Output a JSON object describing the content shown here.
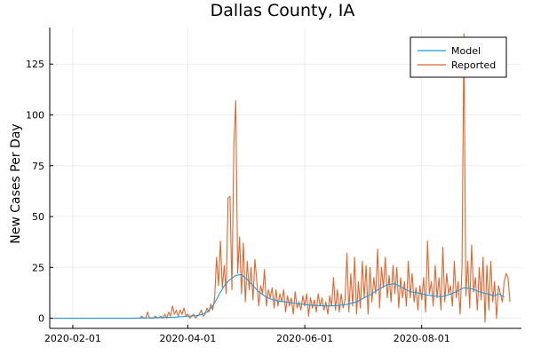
{
  "chart_data": {
    "type": "line",
    "title": "Dallas County, IA",
    "xlabel": "",
    "ylabel": "New Cases Per Day",
    "x_axis_type": "date",
    "xlim": [
      "2020-01-20",
      "2020-09-22"
    ],
    "ylim": [
      -5,
      143
    ],
    "x_ticks": [
      "2020-02-01",
      "2020-04-01",
      "2020-06-01",
      "2020-08-01"
    ],
    "y_ticks": [
      0,
      25,
      50,
      75,
      100,
      125
    ],
    "grid": true,
    "legend_position": "top-right",
    "series": [
      {
        "name": "Model",
        "color": "#1a9ae0",
        "points": [
          [
            "2020-01-22",
            0
          ],
          [
            "2020-03-01",
            0
          ],
          [
            "2020-03-15",
            0.2
          ],
          [
            "2020-03-25",
            0.5
          ],
          [
            "2020-04-01",
            1
          ],
          [
            "2020-04-05",
            1.2
          ],
          [
            "2020-04-08",
            1.8
          ],
          [
            "2020-04-11",
            3
          ],
          [
            "2020-04-14",
            6
          ],
          [
            "2020-04-17",
            11
          ],
          [
            "2020-04-20",
            16
          ],
          [
            "2020-04-23",
            19
          ],
          [
            "2020-04-26",
            21
          ],
          [
            "2020-04-29",
            21.5
          ],
          [
            "2020-05-02",
            19
          ],
          [
            "2020-05-05",
            16
          ],
          [
            "2020-05-08",
            13
          ],
          [
            "2020-05-11",
            11
          ],
          [
            "2020-05-14",
            9.5
          ],
          [
            "2020-05-18",
            8.5
          ],
          [
            "2020-05-22",
            8
          ],
          [
            "2020-05-26",
            7.5
          ],
          [
            "2020-05-30",
            7
          ],
          [
            "2020-06-03",
            6.5
          ],
          [
            "2020-06-08",
            6.2
          ],
          [
            "2020-06-13",
            6
          ],
          [
            "2020-06-18",
            6.2
          ],
          [
            "2020-06-23",
            6.8
          ],
          [
            "2020-06-28",
            8
          ],
          [
            "2020-07-02",
            10
          ],
          [
            "2020-07-06",
            12
          ],
          [
            "2020-07-10",
            14.5
          ],
          [
            "2020-07-14",
            16.5
          ],
          [
            "2020-07-18",
            17
          ],
          [
            "2020-07-22",
            15
          ],
          [
            "2020-07-26",
            13
          ],
          [
            "2020-07-30",
            12.5
          ],
          [
            "2020-08-03",
            11.5
          ],
          [
            "2020-08-07",
            11
          ],
          [
            "2020-08-11",
            10.5
          ],
          [
            "2020-08-15",
            11.5
          ],
          [
            "2020-08-19",
            13
          ],
          [
            "2020-08-23",
            15
          ],
          [
            "2020-08-27",
            14.5
          ],
          [
            "2020-08-31",
            13
          ],
          [
            "2020-09-04",
            12
          ],
          [
            "2020-09-08",
            11
          ],
          [
            "2020-09-10",
            12
          ],
          [
            "2020-09-13",
            10.5
          ]
        ]
      },
      {
        "name": "Reported",
        "color": "#e2662f",
        "points": [
          [
            "2020-01-22",
            0
          ],
          [
            "2020-03-07",
            0
          ],
          [
            "2020-03-08",
            1
          ],
          [
            "2020-03-09",
            0
          ],
          [
            "2020-03-10",
            0
          ],
          [
            "2020-03-11",
            3
          ],
          [
            "2020-03-12",
            0
          ],
          [
            "2020-03-14",
            0
          ],
          [
            "2020-03-15",
            1
          ],
          [
            "2020-03-16",
            0
          ],
          [
            "2020-03-18",
            1
          ],
          [
            "2020-03-19",
            0
          ],
          [
            "2020-03-20",
            2
          ],
          [
            "2020-03-21",
            0
          ],
          [
            "2020-03-22",
            3
          ],
          [
            "2020-03-23",
            1
          ],
          [
            "2020-03-24",
            6
          ],
          [
            "2020-03-25",
            2
          ],
          [
            "2020-03-26",
            4
          ],
          [
            "2020-03-27",
            1
          ],
          [
            "2020-03-28",
            4
          ],
          [
            "2020-03-29",
            2
          ],
          [
            "2020-03-30",
            5
          ],
          [
            "2020-03-31",
            1
          ],
          [
            "2020-04-01",
            2
          ],
          [
            "2020-04-02",
            0
          ],
          [
            "2020-04-03",
            1
          ],
          [
            "2020-04-04",
            2
          ],
          [
            "2020-04-05",
            0
          ],
          [
            "2020-04-06",
            1
          ],
          [
            "2020-04-07",
            2
          ],
          [
            "2020-04-08",
            4
          ],
          [
            "2020-04-09",
            1
          ],
          [
            "2020-04-10",
            2
          ],
          [
            "2020-04-11",
            5
          ],
          [
            "2020-04-12",
            3
          ],
          [
            "2020-04-13",
            7
          ],
          [
            "2020-04-14",
            4
          ],
          [
            "2020-04-15",
            10
          ],
          [
            "2020-04-16",
            30
          ],
          [
            "2020-04-17",
            16
          ],
          [
            "2020-04-18",
            38
          ],
          [
            "2020-04-19",
            15
          ],
          [
            "2020-04-20",
            26
          ],
          [
            "2020-04-21",
            12
          ],
          [
            "2020-04-22",
            59
          ],
          [
            "2020-04-23",
            60
          ],
          [
            "2020-04-24",
            14
          ],
          [
            "2020-04-25",
            85
          ],
          [
            "2020-04-26",
            107
          ],
          [
            "2020-04-27",
            22
          ],
          [
            "2020-04-28",
            40
          ],
          [
            "2020-04-29",
            12
          ],
          [
            "2020-04-30",
            37
          ],
          [
            "2020-05-01",
            8
          ],
          [
            "2020-05-02",
            28
          ],
          [
            "2020-05-03",
            14
          ],
          [
            "2020-05-04",
            25
          ],
          [
            "2020-05-05",
            9
          ],
          [
            "2020-05-06",
            29
          ],
          [
            "2020-05-07",
            18
          ],
          [
            "2020-05-08",
            6
          ],
          [
            "2020-05-09",
            16
          ],
          [
            "2020-05-10",
            12
          ],
          [
            "2020-05-11",
            24
          ],
          [
            "2020-05-12",
            6
          ],
          [
            "2020-05-13",
            14
          ],
          [
            "2020-05-14",
            10
          ],
          [
            "2020-05-15",
            15
          ],
          [
            "2020-05-16",
            5
          ],
          [
            "2020-05-17",
            14
          ],
          [
            "2020-05-18",
            6
          ],
          [
            "2020-05-19",
            12
          ],
          [
            "2020-05-20",
            8
          ],
          [
            "2020-05-21",
            14
          ],
          [
            "2020-05-22",
            3
          ],
          [
            "2020-05-23",
            11
          ],
          [
            "2020-05-24",
            6
          ],
          [
            "2020-05-25",
            10
          ],
          [
            "2020-05-26",
            2
          ],
          [
            "2020-05-27",
            13
          ],
          [
            "2020-05-28",
            5
          ],
          [
            "2020-05-29",
            8
          ],
          [
            "2020-05-30",
            4
          ],
          [
            "2020-05-31",
            11
          ],
          [
            "2020-06-01",
            6
          ],
          [
            "2020-06-02",
            12
          ],
          [
            "2020-06-03",
            1
          ],
          [
            "2020-06-04",
            10
          ],
          [
            "2020-06-05",
            5
          ],
          [
            "2020-06-06",
            9
          ],
          [
            "2020-06-07",
            3
          ],
          [
            "2020-06-08",
            12
          ],
          [
            "2020-06-09",
            6
          ],
          [
            "2020-06-10",
            10
          ],
          [
            "2020-06-11",
            4
          ],
          [
            "2020-06-12",
            8
          ],
          [
            "2020-06-13",
            2
          ],
          [
            "2020-06-14",
            11
          ],
          [
            "2020-06-15",
            6
          ],
          [
            "2020-06-16",
            20
          ],
          [
            "2020-06-17",
            4
          ],
          [
            "2020-06-18",
            14
          ],
          [
            "2020-06-19",
            3
          ],
          [
            "2020-06-20",
            12
          ],
          [
            "2020-06-21",
            5
          ],
          [
            "2020-06-22",
            9
          ],
          [
            "2020-06-23",
            32
          ],
          [
            "2020-06-24",
            3
          ],
          [
            "2020-06-25",
            22
          ],
          [
            "2020-06-26",
            6
          ],
          [
            "2020-06-27",
            30
          ],
          [
            "2020-06-28",
            2
          ],
          [
            "2020-06-29",
            18
          ],
          [
            "2020-06-30",
            5
          ],
          [
            "2020-07-01",
            28
          ],
          [
            "2020-07-02",
            10
          ],
          [
            "2020-07-03",
            26
          ],
          [
            "2020-07-04",
            2
          ],
          [
            "2020-07-05",
            25
          ],
          [
            "2020-07-06",
            8
          ],
          [
            "2020-07-07",
            20
          ],
          [
            "2020-07-08",
            12
          ],
          [
            "2020-07-09",
            34
          ],
          [
            "2020-07-10",
            5
          ],
          [
            "2020-07-11",
            25
          ],
          [
            "2020-07-12",
            15
          ],
          [
            "2020-07-13",
            30
          ],
          [
            "2020-07-14",
            10
          ],
          [
            "2020-07-15",
            21
          ],
          [
            "2020-07-16",
            8
          ],
          [
            "2020-07-17",
            26
          ],
          [
            "2020-07-18",
            12
          ],
          [
            "2020-07-19",
            25
          ],
          [
            "2020-07-20",
            5
          ],
          [
            "2020-07-21",
            20
          ],
          [
            "2020-07-22",
            10
          ],
          [
            "2020-07-23",
            18
          ],
          [
            "2020-07-24",
            6
          ],
          [
            "2020-07-25",
            28
          ],
          [
            "2020-07-26",
            10
          ],
          [
            "2020-07-27",
            22
          ],
          [
            "2020-07-28",
            8
          ],
          [
            "2020-07-29",
            15
          ],
          [
            "2020-07-30",
            4
          ],
          [
            "2020-07-31",
            16
          ],
          [
            "2020-08-01",
            9
          ],
          [
            "2020-08-02",
            20
          ],
          [
            "2020-08-03",
            3
          ],
          [
            "2020-08-04",
            38
          ],
          [
            "2020-08-05",
            12
          ],
          [
            "2020-08-06",
            18
          ],
          [
            "2020-08-07",
            6
          ],
          [
            "2020-08-08",
            26
          ],
          [
            "2020-08-09",
            10
          ],
          [
            "2020-08-10",
            20
          ],
          [
            "2020-08-11",
            4
          ],
          [
            "2020-08-12",
            35
          ],
          [
            "2020-08-13",
            8
          ],
          [
            "2020-08-14",
            22
          ],
          [
            "2020-08-15",
            12
          ],
          [
            "2020-08-16",
            16
          ],
          [
            "2020-08-17",
            6
          ],
          [
            "2020-08-18",
            28
          ],
          [
            "2020-08-19",
            10
          ],
          [
            "2020-08-20",
            18
          ],
          [
            "2020-08-21",
            2
          ],
          [
            "2020-08-22",
            25
          ],
          [
            "2020-08-23",
            140
          ],
          [
            "2020-08-24",
            11
          ],
          [
            "2020-08-25",
            28
          ],
          [
            "2020-08-26",
            5
          ],
          [
            "2020-08-27",
            36
          ],
          [
            "2020-08-28",
            13
          ],
          [
            "2020-08-29",
            20
          ],
          [
            "2020-08-30",
            4
          ],
          [
            "2020-08-31",
            25
          ],
          [
            "2020-09-01",
            9
          ],
          [
            "2020-09-02",
            30
          ],
          [
            "2020-09-03",
            -2
          ],
          [
            "2020-09-04",
            26
          ],
          [
            "2020-09-05",
            4
          ],
          [
            "2020-09-06",
            28
          ],
          [
            "2020-09-07",
            8
          ],
          [
            "2020-09-08",
            18
          ],
          [
            "2020-09-09",
            0
          ],
          [
            "2020-09-10",
            16
          ],
          [
            "2020-09-11",
            12
          ],
          [
            "2020-09-12",
            8
          ],
          [
            "2020-09-13",
            18
          ],
          [
            "2020-09-14",
            22
          ],
          [
            "2020-09-15",
            20
          ],
          [
            "2020-09-16",
            8
          ]
        ]
      }
    ]
  }
}
